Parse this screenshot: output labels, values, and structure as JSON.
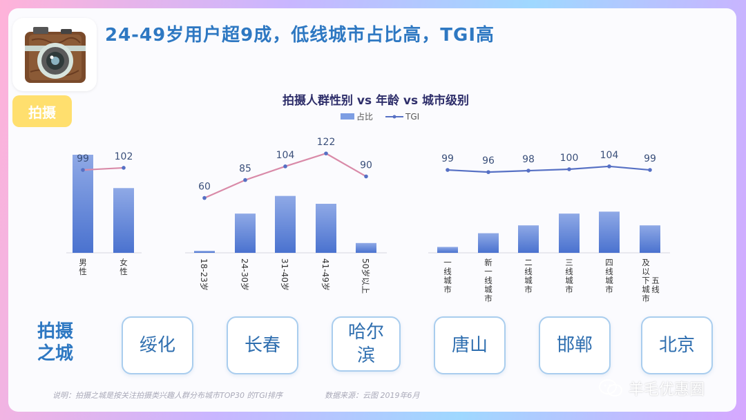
{
  "header": {
    "title": "24-49岁用户超9成，低线城市占比高，TGI高",
    "badge": "拍摄"
  },
  "chart_data": {
    "type": "bar",
    "title": "拍摄人群性别 vs 年龄 vs 城市级别",
    "legend": {
      "placement": "top-center",
      "bar_label": "占比",
      "line_label": "TGI"
    },
    "colors": {
      "bar_top": "#7d9ee3",
      "bar_bottom": "#4a72cf",
      "tgi_demo": "#d98aa8",
      "tgi_city": "#5670c4",
      "axis": "#d6d6e0",
      "label": "#333333"
    },
    "groups": [
      {
        "name": "gender",
        "categories": [
          "男性",
          "女性"
        ],
        "share": [
          0.5,
          0.33
        ],
        "tgi": [
          99,
          102
        ]
      },
      {
        "name": "age",
        "categories": [
          "18-23岁",
          "24-30岁",
          "31-40岁",
          "41-49岁",
          "50岁以上"
        ],
        "share": [
          0.01,
          0.2,
          0.29,
          0.25,
          0.05
        ],
        "tgi": [
          60,
          85,
          104,
          122,
          90
        ]
      },
      {
        "name": "city",
        "categories": [
          "一线城市",
          "新一线城市",
          "二线城市",
          "三线城市",
          "四线城市",
          "五线及以下城市"
        ],
        "share": [
          0.03,
          0.1,
          0.14,
          0.2,
          0.21,
          0.14
        ],
        "tgi": [
          99,
          96,
          98,
          100,
          104,
          99
        ]
      }
    ]
  },
  "cities": {
    "label": "拍摄之城",
    "items": [
      "绥化",
      "长春",
      "哈尔滨",
      "唐山",
      "邯郸",
      "北京"
    ]
  },
  "footer": {
    "note": "说明：拍摄之城是按关注拍摄类兴趣人群分布城市TOP30 的TGI排序",
    "source": "数据来源：云图 2019年6月",
    "wechat": "羊毛优惠圈"
  }
}
